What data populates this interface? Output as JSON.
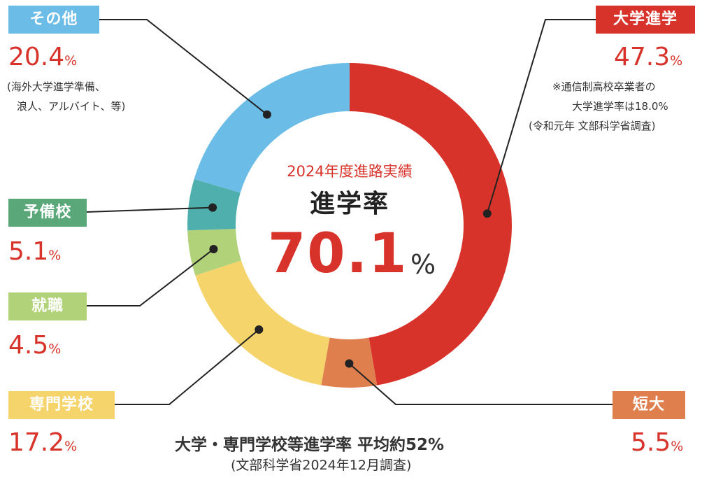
{
  "chart_data": {
    "type": "pie",
    "title": "2024年度進路実績",
    "center_label": "進学率",
    "center_value": "70.1",
    "center_unit": "%",
    "slices": [
      {
        "label": "大学進学",
        "value": 47.3,
        "display": "47.3",
        "color": "#d8332b"
      },
      {
        "label": "短大",
        "value": 5.5,
        "display": "5.5",
        "color": "#e07f4e"
      },
      {
        "label": "専門学校",
        "value": 17.2,
        "display": "17.2",
        "color": "#f5d46c"
      },
      {
        "label": "就職",
        "value": 4.5,
        "display": "4.5",
        "color": "#b2d27a"
      },
      {
        "label": "予備校",
        "value": 5.1,
        "display": "5.1",
        "color": "#4fafad"
      },
      {
        "label": "その他",
        "value": 20.4,
        "display": "20.4",
        "color": "#6bbde8"
      }
    ],
    "unit": "%",
    "notes": {
      "daigaku": [
        "※通信制高校卒業者の",
        "大学進学率は18.0%",
        "(令和元年 文部科学省調査)"
      ],
      "sonota": [
        "(海外大学進学準備、",
        "浪人、アルバイト、等)"
      ]
    },
    "footer": [
      "大学・専門学校等進学率 平均約52%",
      "(文部科学省2024年12月調査)"
    ]
  }
}
